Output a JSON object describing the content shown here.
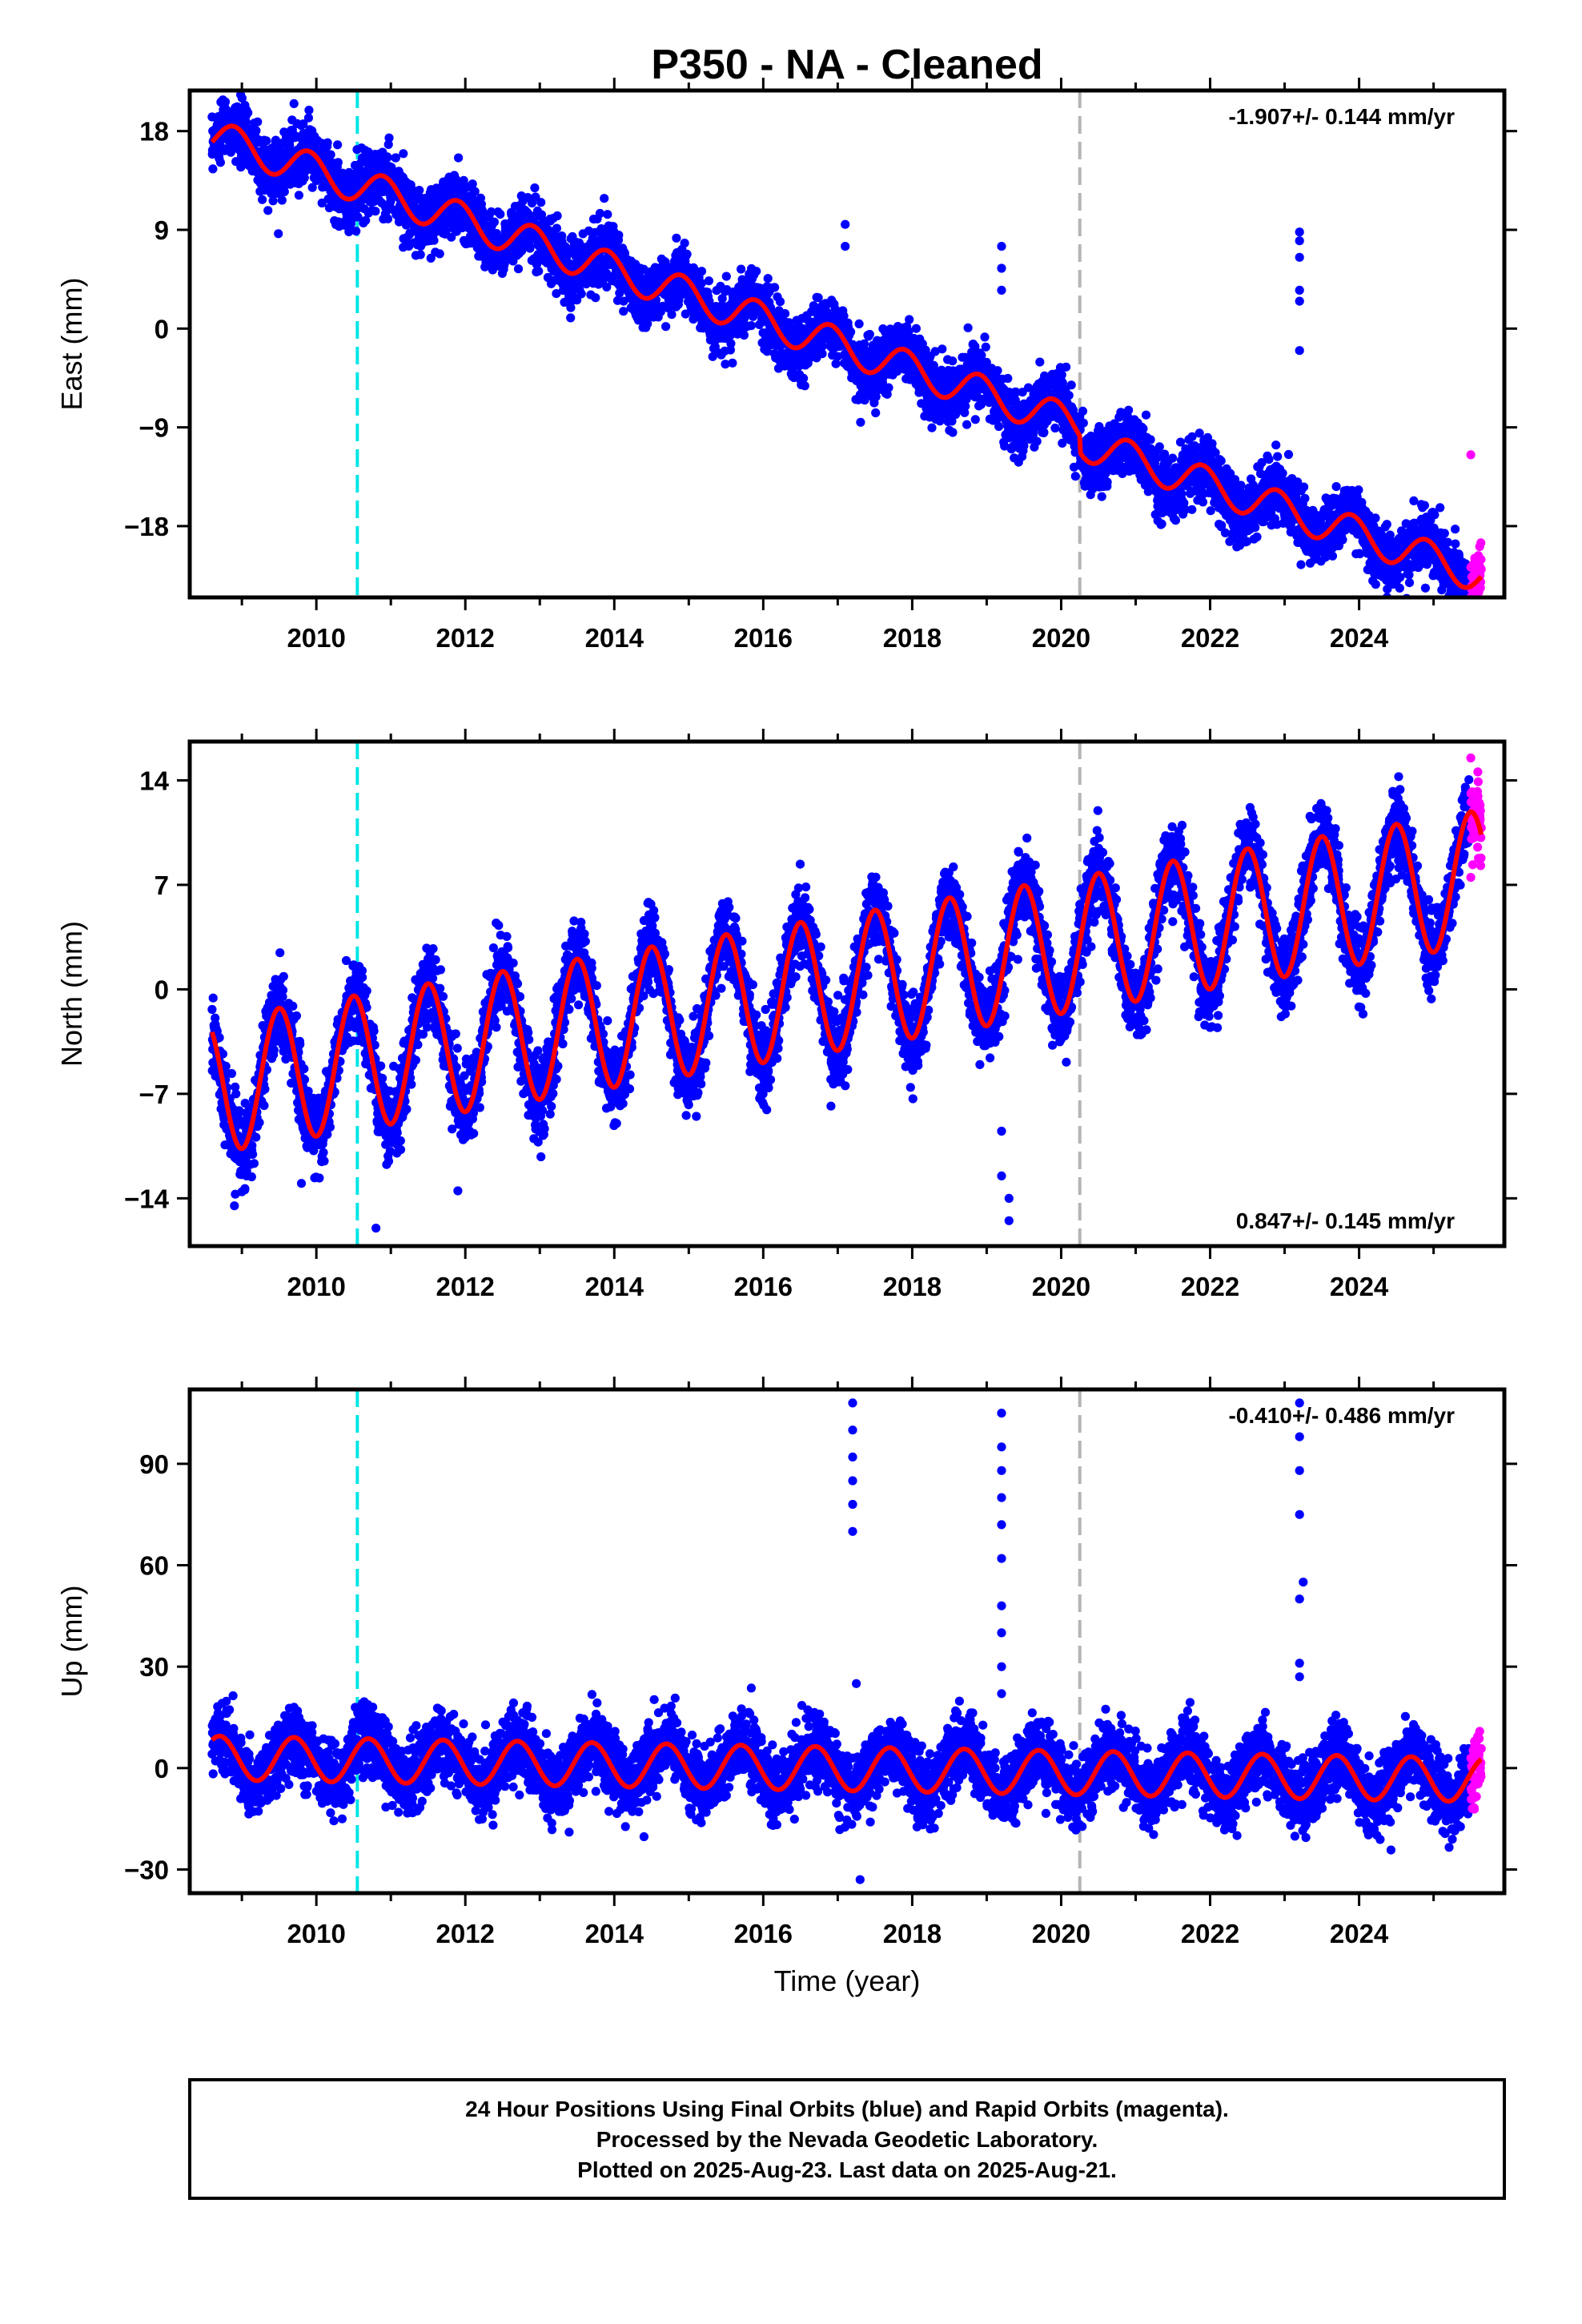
{
  "title": "P350  - NA - Cleaned",
  "colors": {
    "final_orbits": "#0000ff",
    "rapid_orbits": "#ff00ff",
    "model": "#ff0000",
    "event_cyan": "#00e5e5",
    "event_gray": "#b4b4b4"
  },
  "footer": {
    "line1": "24 Hour Positions Using Final Orbits (blue) and Rapid Orbits (magenta).",
    "line2": "Processed by the Nevada Geodetic Laboratory.",
    "line3": "Plotted on 2025-Aug-23. Last data on 2025-Aug-21."
  },
  "chart_data": [
    {
      "type": "scatter",
      "component": "east",
      "ylabel": "East (mm)",
      "xlabel": "",
      "xlim": [
        2008.3,
        2025.95
      ],
      "ylim": [
        -24.5,
        21.7
      ],
      "xticks": [
        2010,
        2012,
        2014,
        2016,
        2018,
        2020,
        2022,
        2024
      ],
      "yticks": [
        18,
        9,
        0,
        -9,
        -18
      ],
      "ytick_labels": [
        "18",
        "9",
        "0",
        "−9",
        "−18"
      ],
      "rate_label": "-1.907+/- 0.144 mm/yr",
      "rate_position": "top-right",
      "start_year": 2008.6,
      "end_year": 2025.64,
      "rapid_start_year": 2025.5,
      "start_value": 17.5,
      "end_value": -21.0,
      "seasonal_amplitude": 1.6,
      "seasonal_phase_year": 2009.9,
      "scatter_sd": 1.4,
      "offsets": [
        {
          "year": 2020.25,
          "value": -1.5
        }
      ],
      "outliers": [
        {
          "x": 2009.7,
          "y": 20.5
        },
        {
          "x": 2017.1,
          "y": 9.5
        },
        {
          "x": 2017.1,
          "y": 7.5
        },
        {
          "x": 2019.2,
          "y": 7.5
        },
        {
          "x": 2019.2,
          "y": 5.5
        },
        {
          "x": 2019.2,
          "y": 3.5
        },
        {
          "x": 2023.2,
          "y": 8.8
        },
        {
          "x": 2023.2,
          "y": 8.0
        },
        {
          "x": 2023.2,
          "y": 6.5
        },
        {
          "x": 2023.2,
          "y": 3.5
        },
        {
          "x": 2023.2,
          "y": 2.5
        },
        {
          "x": 2023.2,
          "y": -2.0
        },
        {
          "x": 2025.5,
          "y": -11.5
        }
      ],
      "event_lines": [
        {
          "x": 2010.55,
          "color": "cyan"
        },
        {
          "x": 2020.25,
          "color": "gray"
        }
      ],
      "grid": false
    },
    {
      "type": "scatter",
      "component": "north",
      "ylabel": "North (mm)",
      "xlabel": "",
      "xlim": [
        2008.3,
        2025.95
      ],
      "ylim": [
        -17.2,
        16.6
      ],
      "xticks": [
        2010,
        2012,
        2014,
        2016,
        2018,
        2020,
        2022,
        2024
      ],
      "yticks": [
        14,
        7,
        0,
        -7,
        -14
      ],
      "ytick_labels": [
        "14",
        "7",
        "0",
        "−7",
        "−14"
      ],
      "rate_label": "0.847+/- 0.145 mm/yr",
      "rate_position": "bottom-right",
      "start_year": 2008.6,
      "end_year": 2025.64,
      "rapid_start_year": 2025.5,
      "start_value": -6.5,
      "end_value": 7.5,
      "seasonal_amplitude": 4.5,
      "seasonal_phase_year": 2009.5,
      "scatter_sd": 1.3,
      "offsets": [],
      "outliers": [
        {
          "x": 2008.9,
          "y": -14.5
        },
        {
          "x": 2009.8,
          "y": -13.0
        },
        {
          "x": 2010.8,
          "y": -16.0
        },
        {
          "x": 2011.9,
          "y": -13.5
        },
        {
          "x": 2019.2,
          "y": -12.5
        },
        {
          "x": 2019.3,
          "y": -14.0
        },
        {
          "x": 2019.3,
          "y": -15.5
        },
        {
          "x": 2019.2,
          "y": -9.5
        },
        {
          "x": 2025.5,
          "y": 15.5
        },
        {
          "x": 2025.5,
          "y": 7.5
        }
      ],
      "event_lines": [
        {
          "x": 2010.55,
          "color": "cyan"
        },
        {
          "x": 2020.25,
          "color": "gray"
        }
      ],
      "grid": false
    },
    {
      "type": "scatter",
      "component": "up",
      "ylabel": "Up (mm)",
      "xlabel": "Time (year)",
      "xlim": [
        2008.3,
        2025.95
      ],
      "ylim": [
        -37,
        112
      ],
      "xticks": [
        2010,
        2012,
        2014,
        2016,
        2018,
        2020,
        2022,
        2024
      ],
      "yticks": [
        90,
        60,
        30,
        0,
        -30
      ],
      "ytick_labels": [
        "90",
        "60",
        "30",
        "0",
        "−30"
      ],
      "rate_label": "-0.410+/- 0.486 mm/yr",
      "rate_position": "top-right",
      "start_year": 2008.6,
      "end_year": 2025.64,
      "rapid_start_year": 2025.5,
      "start_value": 3.0,
      "end_value": -3.5,
      "seasonal_amplitude": 6.5,
      "seasonal_phase_year": 2009.7,
      "scatter_sd": 5.0,
      "offsets": [],
      "outliers": [
        {
          "x": 2017.2,
          "y": 108
        },
        {
          "x": 2017.2,
          "y": 100
        },
        {
          "x": 2017.2,
          "y": 92
        },
        {
          "x": 2017.2,
          "y": 85
        },
        {
          "x": 2017.2,
          "y": 78
        },
        {
          "x": 2017.2,
          "y": 70
        },
        {
          "x": 2017.25,
          "y": 25
        },
        {
          "x": 2017.3,
          "y": -33
        },
        {
          "x": 2019.2,
          "y": 105
        },
        {
          "x": 2019.2,
          "y": 95
        },
        {
          "x": 2019.2,
          "y": 88
        },
        {
          "x": 2019.2,
          "y": 80
        },
        {
          "x": 2019.2,
          "y": 72
        },
        {
          "x": 2019.2,
          "y": 62
        },
        {
          "x": 2019.2,
          "y": 48
        },
        {
          "x": 2019.2,
          "y": 40
        },
        {
          "x": 2019.2,
          "y": 30
        },
        {
          "x": 2019.2,
          "y": 22
        },
        {
          "x": 2023.2,
          "y": 108
        },
        {
          "x": 2023.2,
          "y": 98
        },
        {
          "x": 2023.2,
          "y": 88
        },
        {
          "x": 2023.2,
          "y": 75
        },
        {
          "x": 2023.25,
          "y": 55
        },
        {
          "x": 2023.2,
          "y": 50
        },
        {
          "x": 2023.2,
          "y": 31
        },
        {
          "x": 2023.2,
          "y": 27
        }
      ],
      "event_lines": [
        {
          "x": 2010.55,
          "color": "cyan"
        },
        {
          "x": 2020.25,
          "color": "gray"
        }
      ],
      "grid": false
    }
  ]
}
